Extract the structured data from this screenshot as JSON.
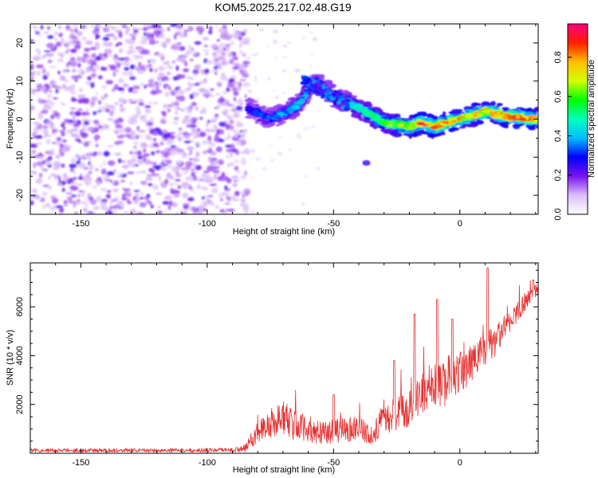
{
  "title": "KOM5.2025.217.02.48.G19",
  "colors": {
    "snr_line": "#e83030",
    "axis": "#000000"
  },
  "chart_data": [
    {
      "type": "heatmap",
      "name": "spectrogram",
      "xlabel": "Height of straight line (km)",
      "ylabel": "Frequency (Hz)",
      "xlim": [
        -170,
        31
      ],
      "ylim": [
        -25,
        25
      ],
      "xticks": [
        -150,
        -100,
        -50,
        0
      ],
      "yticks": [
        -20,
        -10,
        0,
        10,
        20
      ],
      "colorbar": {
        "label": "Normalized spectral amplitude",
        "range": [
          0,
          0.97
        ],
        "ticks": [
          0.0,
          0.2,
          0.4,
          0.6,
          0.8
        ]
      },
      "features": [
        {
          "region": "noise",
          "x_range": [
            -170,
            -84
          ],
          "amplitude": 0.15
        },
        {
          "region": "signal",
          "x": [
            -84,
            -75,
            -65,
            -57,
            -50,
            -40,
            -30,
            -20,
            -15,
            -10,
            0,
            10,
            20,
            31
          ],
          "y": [
            3,
            0,
            3,
            10,
            6,
            3,
            -1,
            -2,
            -1,
            -2,
            0,
            2,
            0.5,
            0
          ],
          "amplitude": [
            0.3,
            0.35,
            0.4,
            0.35,
            0.4,
            0.5,
            0.6,
            0.7,
            0.85,
            0.8,
            0.75,
            0.75,
            0.85,
            0.8
          ]
        },
        {
          "region": "blip",
          "x": -37,
          "y": -11.5,
          "amplitude": 0.35
        }
      ]
    },
    {
      "type": "line",
      "name": "snr",
      "xlabel": "Height of straight line (km)",
      "ylabel": "SNR (10 * v/v)",
      "xlim": [
        -170,
        31
      ],
      "ylim": [
        0,
        7800
      ],
      "xticks": [
        -150,
        -100,
        -50,
        0
      ],
      "yticks": [
        2000,
        4000,
        6000
      ],
      "trend": {
        "x": [
          -170,
          -110,
          -90,
          -85,
          -80,
          -75,
          -70,
          -65,
          -60,
          -55,
          -50,
          -45,
          -40,
          -35,
          -30,
          -25,
          -20,
          -15,
          -10,
          -5,
          0,
          5,
          10,
          15,
          20,
          25,
          31
        ],
        "y": [
          120,
          120,
          130,
          200,
          900,
          1200,
          1500,
          1100,
          1000,
          800,
          900,
          1000,
          1100,
          700,
          1400,
          1600,
          1900,
          2400,
          2700,
          2900,
          3300,
          3700,
          4200,
          4700,
          5400,
          6100,
          6800
        ],
        "noise": [
          80,
          80,
          90,
          150,
          450,
          650,
          700,
          600,
          550,
          450,
          500,
          550,
          500,
          400,
          600,
          700,
          800,
          850,
          950,
          1000,
          850,
          800,
          750,
          650,
          500,
          400,
          250
        ]
      },
      "peaks": [
        {
          "x": -50,
          "y": 2400
        },
        {
          "x": -26,
          "y": 3800
        },
        {
          "x": -18,
          "y": 5700
        },
        {
          "x": -9,
          "y": 6300
        },
        {
          "x": -3,
          "y": 5500
        },
        {
          "x": 11,
          "y": 7600
        },
        {
          "x": 29,
          "y": 7100
        }
      ]
    }
  ]
}
